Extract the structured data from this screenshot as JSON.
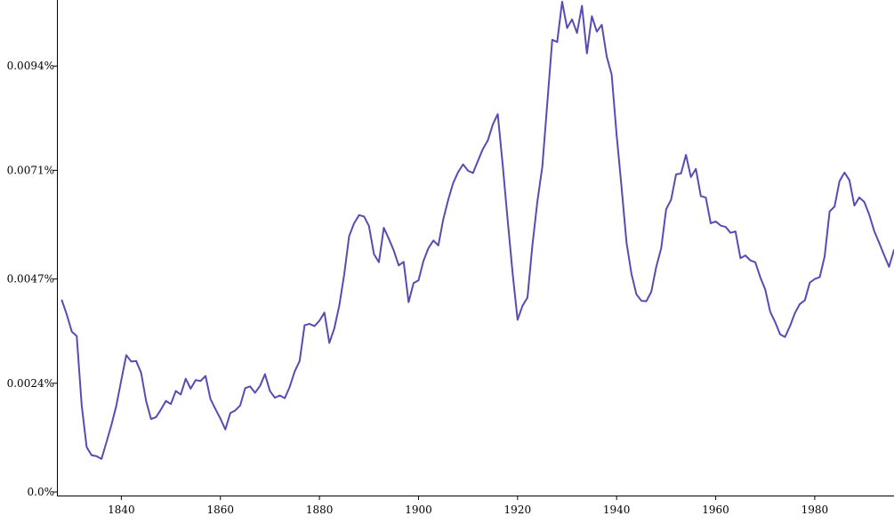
{
  "chart_data": {
    "type": "line",
    "title": "",
    "xlabel": "",
    "ylabel": "",
    "xlim": [
      1827,
      1996
    ],
    "ylim": [
      0,
      0.01074
    ],
    "grid": false,
    "legend": "none",
    "color": "#5b4ab4",
    "x_ticks": [
      {
        "value": 1840,
        "label": "1840"
      },
      {
        "value": 1860,
        "label": "1860"
      },
      {
        "value": 1880,
        "label": "1880"
      },
      {
        "value": 1900,
        "label": "1900"
      },
      {
        "value": 1920,
        "label": "1920"
      },
      {
        "value": 1940,
        "label": "1940"
      },
      {
        "value": 1960,
        "label": "1960"
      },
      {
        "value": 1980,
        "label": "1980"
      }
    ],
    "y_ticks": [
      {
        "value": 0.0,
        "label": "0.0%"
      },
      {
        "value": 0.0024,
        "label": "0.0024%"
      },
      {
        "value": 0.0047,
        "label": "0.0047%"
      },
      {
        "value": 0.0071,
        "label": "0.0071%"
      },
      {
        "value": 0.0094,
        "label": "0.0094%"
      }
    ],
    "series": [
      {
        "x": [
          1828,
          1829,
          1830,
          1831,
          1832,
          1833,
          1834,
          1835,
          1836,
          1837,
          1838,
          1839,
          1840,
          1841,
          1842,
          1843,
          1844,
          1845,
          1846,
          1847,
          1848,
          1849,
          1850,
          1851,
          1852,
          1853,
          1854,
          1855,
          1856,
          1857,
          1858,
          1859,
          1860,
          1861,
          1862,
          1863,
          1864,
          1865,
          1866,
          1867,
          1868,
          1869,
          1870,
          1871,
          1872,
          1873,
          1874,
          1875,
          1876,
          1877,
          1878,
          1879,
          1880,
          1881,
          1882,
          1883,
          1884,
          1885,
          1886,
          1887,
          1888,
          1889,
          1890,
          1891,
          1892,
          1893,
          1894,
          1895,
          1896,
          1897,
          1898,
          1899,
          1900,
          1901,
          1902,
          1903,
          1904,
          1905,
          1906,
          1907,
          1908,
          1909,
          1910,
          1911,
          1912,
          1913,
          1914,
          1915,
          1916,
          1917,
          1918,
          1919,
          1920,
          1921,
          1922,
          1923,
          1924,
          1925,
          1926,
          1927,
          1928,
          1929,
          1930,
          1931,
          1932,
          1933,
          1934,
          1935,
          1936,
          1937,
          1938,
          1939,
          1940,
          1941,
          1942,
          1943,
          1944,
          1945,
          1946,
          1947,
          1948,
          1949,
          1950,
          1951,
          1952,
          1953,
          1954,
          1955,
          1956,
          1957,
          1958,
          1959,
          1960,
          1961,
          1962,
          1963,
          1964,
          1965,
          1966,
          1967,
          1968,
          1969,
          1970,
          1971,
          1972,
          1973,
          1974,
          1975,
          1976,
          1977,
          1978,
          1979,
          1980,
          1981,
          1982,
          1983,
          1984,
          1985,
          1986,
          1987,
          1988,
          1989,
          1990,
          1991,
          1992,
          1993,
          1994,
          1995,
          1996
        ],
        "values": [
          0.00423,
          0.00391,
          0.00354,
          0.00344,
          0.00191,
          0.00099,
          0.00081,
          0.00079,
          0.00073,
          0.0011,
          0.00148,
          0.00191,
          0.00247,
          0.00302,
          0.00288,
          0.00289,
          0.00263,
          0.00201,
          0.00161,
          0.00165,
          0.00182,
          0.00201,
          0.00194,
          0.00223,
          0.00215,
          0.0025,
          0.00228,
          0.00247,
          0.00245,
          0.00256,
          0.00205,
          0.00183,
          0.00162,
          0.00138,
          0.00174,
          0.0018,
          0.00191,
          0.00229,
          0.00233,
          0.00219,
          0.00234,
          0.0026,
          0.00223,
          0.00208,
          0.00213,
          0.00207,
          0.00232,
          0.00266,
          0.00289,
          0.00368,
          0.00371,
          0.00366,
          0.00378,
          0.00396,
          0.00329,
          0.00361,
          0.00411,
          0.0048,
          0.00565,
          0.00593,
          0.00611,
          0.00608,
          0.00587,
          0.00525,
          0.00507,
          0.00583,
          0.00559,
          0.00533,
          0.005,
          0.00508,
          0.00419,
          0.00461,
          0.00467,
          0.0051,
          0.00538,
          0.00555,
          0.00544,
          0.00602,
          0.00645,
          0.00682,
          0.00706,
          0.00723,
          0.00709,
          0.00704,
          0.00731,
          0.00757,
          0.00776,
          0.00811,
          0.00834,
          0.00722,
          0.006,
          0.00483,
          0.0038,
          0.00411,
          0.00429,
          0.00545,
          0.00641,
          0.00718,
          0.00858,
          0.00998,
          0.00993,
          0.01082,
          0.01024,
          0.01043,
          0.01013,
          0.01073,
          0.00968,
          0.0105,
          0.01016,
          0.01031,
          0.00961,
          0.00921,
          0.00788,
          0.00672,
          0.0055,
          0.00481,
          0.00436,
          0.00422,
          0.00421,
          0.00442,
          0.00497,
          0.00538,
          0.00624,
          0.00645,
          0.00701,
          0.00703,
          0.00744,
          0.00695,
          0.00713,
          0.00653,
          0.0065,
          0.00593,
          0.00597,
          0.00588,
          0.00585,
          0.00572,
          0.00575,
          0.00516,
          0.00522,
          0.00511,
          0.00507,
          0.00474,
          0.00447,
          0.00398,
          0.00375,
          0.00348,
          0.00342,
          0.00366,
          0.00395,
          0.00415,
          0.00423,
          0.00462,
          0.0047,
          0.00474,
          0.0052,
          0.00619,
          0.0063,
          0.00686,
          0.00705,
          0.00688,
          0.00632,
          0.0065,
          0.0064,
          0.00612,
          0.00576,
          0.0055,
          0.00523,
          0.00497,
          0.00534
        ]
      }
    ]
  }
}
